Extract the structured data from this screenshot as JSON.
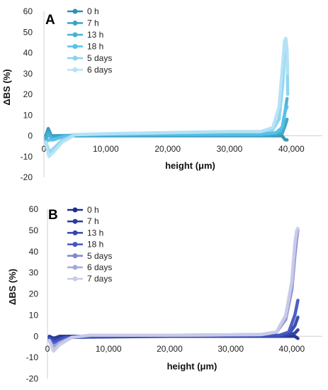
{
  "chart_data": [
    {
      "type": "line",
      "panel_label": "A",
      "xlabel": "height (μm)",
      "ylabel": "ΔBS (%)",
      "xlim": [
        0,
        45000
      ],
      "xticks": [
        0,
        10000,
        20000,
        30000,
        40000
      ],
      "xtick_labels": [
        "0",
        "10,000",
        "20,000",
        "30,000",
        "40,000"
      ],
      "ylim": [
        -20,
        60
      ],
      "yticks": [
        -20,
        -10,
        0,
        10,
        20,
        30,
        40,
        50,
        60
      ],
      "grid": false,
      "legend_position": "top-left",
      "series": [
        {
          "name": "0 h",
          "color": "#2f8fb0",
          "points": [
            [
              300,
              0
            ],
            [
              700,
              3.5
            ],
            [
              1200,
              0
            ],
            [
              5000,
              0
            ],
            [
              20000,
              0
            ],
            [
              35000,
              0
            ],
            [
              37500,
              0
            ],
            [
              38500,
              0
            ],
            [
              39000,
              -2
            ],
            [
              39300,
              -2
            ]
          ]
        },
        {
          "name": "7 h",
          "color": "#3aa3c8",
          "points": [
            [
              300,
              -1
            ],
            [
              700,
              2.5
            ],
            [
              1200,
              0
            ],
            [
              5000,
              0.2
            ],
            [
              20000,
              0.2
            ],
            [
              35000,
              0.2
            ],
            [
              37500,
              0.5
            ],
            [
              38500,
              1
            ],
            [
              39000,
              5
            ],
            [
              39300,
              8
            ]
          ]
        },
        {
          "name": "13 h",
          "color": "#45b1d6",
          "points": [
            [
              300,
              -2
            ],
            [
              700,
              1
            ],
            [
              1300,
              -1.5
            ],
            [
              3000,
              -0.5
            ],
            [
              5000,
              0.3
            ],
            [
              20000,
              0.5
            ],
            [
              35000,
              0.6
            ],
            [
              37500,
              1.2
            ],
            [
              38500,
              3
            ],
            [
              39000,
              12
            ],
            [
              39300,
              18
            ]
          ]
        },
        {
          "name": "18 h",
          "color": "#59c1e6",
          "points": [
            [
              300,
              -3
            ],
            [
              800,
              -2
            ],
            [
              1500,
              -2
            ],
            [
              3000,
              -0.5
            ],
            [
              5000,
              0.5
            ],
            [
              20000,
              0.8
            ],
            [
              35000,
              0.8
            ],
            [
              37500,
              1.5
            ],
            [
              38500,
              4
            ],
            [
              39000,
              12
            ],
            [
              39300,
              14
            ]
          ]
        },
        {
          "name": "5 days",
          "color": "#8ad3ef",
          "points": [
            [
              300,
              -3
            ],
            [
              900,
              -8
            ],
            [
              1600,
              -6
            ],
            [
              3000,
              -2
            ],
            [
              5000,
              0.5
            ],
            [
              10000,
              1
            ],
            [
              20000,
              1.5
            ],
            [
              30000,
              2
            ],
            [
              35000,
              2
            ],
            [
              37000,
              3
            ],
            [
              38000,
              8
            ],
            [
              38600,
              25
            ],
            [
              38900,
              44
            ],
            [
              39100,
              46
            ],
            [
              39300,
              38
            ],
            [
              39400,
              20
            ]
          ]
        },
        {
          "name": "6 days",
          "color": "#b5e2f5",
          "points": [
            [
              300,
              -3
            ],
            [
              800,
              -10
            ],
            [
              1500,
              -8
            ],
            [
              3000,
              -3
            ],
            [
              5000,
              0.5
            ],
            [
              10000,
              1
            ],
            [
              20000,
              1.5
            ],
            [
              30000,
              2
            ],
            [
              35000,
              2
            ],
            [
              37000,
              4
            ],
            [
              38000,
              14
            ],
            [
              38600,
              35
            ],
            [
              38900,
              46
            ],
            [
              39100,
              47
            ],
            [
              39300,
              42
            ],
            [
              39400,
              30
            ]
          ]
        }
      ]
    },
    {
      "type": "line",
      "panel_label": "B",
      "xlabel": "height (μm)",
      "ylabel": "ΔBS (%)",
      "xlim": [
        0,
        45000
      ],
      "xticks": [
        0,
        10000,
        20000,
        30000,
        40000
      ],
      "xtick_labels": [
        "0",
        "10,000",
        "20,000",
        "30,000",
        "40,000"
      ],
      "ylim": [
        -20,
        60
      ],
      "yticks": [
        -20,
        -10,
        0,
        10,
        20,
        30,
        40,
        50,
        60
      ],
      "grid": false,
      "legend_position": "top-left",
      "series": [
        {
          "name": "0 h",
          "color": "#1f2f8a",
          "points": [
            [
              300,
              0
            ],
            [
              1000,
              -1
            ],
            [
              2000,
              0
            ],
            [
              20000,
              0
            ],
            [
              39000,
              0
            ],
            [
              40500,
              0
            ],
            [
              41000,
              -1
            ]
          ]
        },
        {
          "name": "7 h",
          "color": "#283c9e",
          "points": [
            [
              300,
              -0.5
            ],
            [
              1000,
              -1.5
            ],
            [
              2500,
              -0.5
            ],
            [
              20000,
              0
            ],
            [
              38000,
              0.2
            ],
            [
              39500,
              0.5
            ],
            [
              40500,
              1.5
            ],
            [
              41000,
              3
            ]
          ]
        },
        {
          "name": "13 h",
          "color": "#3346ad",
          "points": [
            [
              300,
              -1
            ],
            [
              1000,
              -2
            ],
            [
              3000,
              -0.5
            ],
            [
              20000,
              0.2
            ],
            [
              38000,
              0.3
            ],
            [
              39500,
              1
            ],
            [
              40500,
              5
            ],
            [
              41000,
              9
            ]
          ]
        },
        {
          "name": "18 h",
          "color": "#4356c2",
          "points": [
            [
              300,
              -1
            ],
            [
              1000,
              -3
            ],
            [
              3000,
              -0.5
            ],
            [
              20000,
              0.3
            ],
            [
              38000,
              0.5
            ],
            [
              39500,
              2
            ],
            [
              40500,
              10
            ],
            [
              41000,
              17
            ]
          ]
        },
        {
          "name": "5 days",
          "color": "#7f87cf",
          "points": [
            [
              300,
              -2
            ],
            [
              1000,
              -5
            ],
            [
              2000,
              -3
            ],
            [
              4000,
              -0.5
            ],
            [
              7000,
              0.5
            ],
            [
              20000,
              0.5
            ],
            [
              35000,
              0.8
            ],
            [
              37500,
              2
            ],
            [
              39000,
              8
            ],
            [
              40000,
              22
            ],
            [
              40500,
              38
            ],
            [
              40800,
              46
            ],
            [
              41000,
              50
            ]
          ]
        },
        {
          "name": "6 days",
          "color": "#a6aad8",
          "points": [
            [
              300,
              -2
            ],
            [
              1000,
              -6
            ],
            [
              2000,
              -3
            ],
            [
              4000,
              -0.5
            ],
            [
              7000,
              0.5
            ],
            [
              20000,
              0.5
            ],
            [
              35000,
              0.8
            ],
            [
              37500,
              2
            ],
            [
              39000,
              9
            ],
            [
              40000,
              25
            ],
            [
              40500,
              42
            ],
            [
              40800,
              48
            ],
            [
              41000,
              50
            ]
          ]
        },
        {
          "name": "7 days",
          "color": "#c9cbe9",
          "points": [
            [
              300,
              -2
            ],
            [
              1000,
              -7
            ],
            [
              2000,
              -4
            ],
            [
              4000,
              -0.5
            ],
            [
              7000,
              0.5
            ],
            [
              20000,
              0.5
            ],
            [
              35000,
              0.8
            ],
            [
              37500,
              2
            ],
            [
              39000,
              10
            ],
            [
              40000,
              26
            ],
            [
              40500,
              44
            ],
            [
              40800,
              50
            ],
            [
              41000,
              51
            ]
          ]
        }
      ]
    }
  ]
}
